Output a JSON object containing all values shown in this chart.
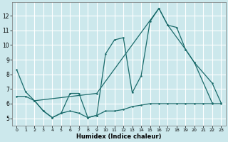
{
  "xlabel": "Humidex (Indice chaleur)",
  "xlim": [
    -0.5,
    23.5
  ],
  "ylim": [
    4.5,
    12.9
  ],
  "xticks": [
    0,
    1,
    2,
    3,
    4,
    5,
    6,
    7,
    8,
    9,
    10,
    11,
    12,
    13,
    14,
    15,
    16,
    17,
    18,
    19,
    20,
    21,
    22,
    23
  ],
  "yticks": [
    5,
    6,
    7,
    8,
    9,
    10,
    11,
    12
  ],
  "background_color": "#cce8ec",
  "grid_color": "#ffffff",
  "line_color": "#1a6b6b",
  "line1_x": [
    0,
    1,
    2,
    3,
    4,
    5,
    6,
    7,
    8,
    9,
    10,
    11,
    12,
    13,
    14,
    15,
    16,
    17,
    18,
    19,
    20,
    22
  ],
  "line1_y": [
    8.3,
    6.8,
    6.2,
    5.5,
    5.05,
    5.35,
    6.7,
    6.7,
    5.05,
    5.2,
    9.4,
    10.35,
    10.5,
    6.75,
    7.9,
    11.6,
    12.5,
    11.35,
    11.2,
    9.7,
    8.8,
    6.05
  ],
  "line2_x": [
    2,
    9,
    16,
    17,
    19,
    20,
    22,
    23
  ],
  "line2_y": [
    6.2,
    6.7,
    12.5,
    11.35,
    9.7,
    8.8,
    7.4,
    6.05
  ],
  "line3_x": [
    0,
    1,
    2,
    3,
    4,
    5,
    6,
    7,
    8,
    9,
    10,
    11,
    12,
    13,
    14,
    15,
    16,
    17,
    18,
    19,
    20,
    21,
    22,
    23
  ],
  "line3_y": [
    6.5,
    6.5,
    6.2,
    5.5,
    5.05,
    5.35,
    5.5,
    5.35,
    5.05,
    5.2,
    5.5,
    5.5,
    5.6,
    5.8,
    5.9,
    6.0,
    6.0,
    6.0,
    6.0,
    6.0,
    6.0,
    6.0,
    6.0,
    6.0
  ]
}
